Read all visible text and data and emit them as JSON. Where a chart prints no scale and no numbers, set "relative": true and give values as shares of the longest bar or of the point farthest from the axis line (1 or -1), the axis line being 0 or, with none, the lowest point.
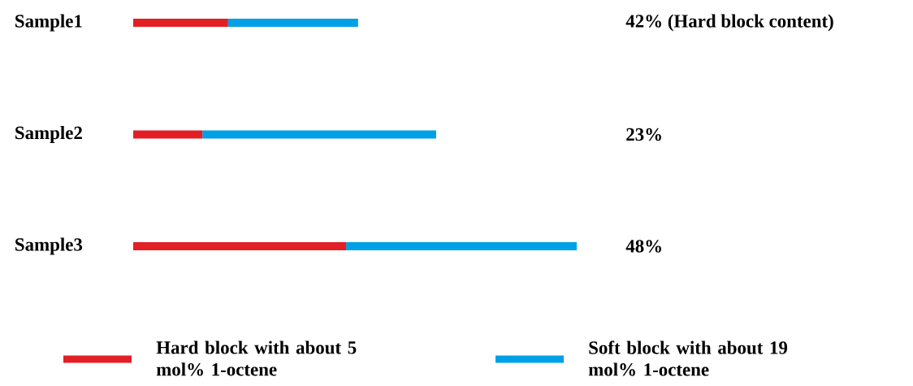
{
  "chart_data": {
    "type": "bar",
    "orientation": "horizontal",
    "stacked": true,
    "relative": true,
    "legend": "bottom",
    "categories": [
      "Sample1",
      "Sample2",
      "Sample3"
    ],
    "series": [
      {
        "name": "Hard block with about 5 mol% 1-octene",
        "color": "#e31f26",
        "values": [
          0.214,
          0.156,
          0.48
        ]
      },
      {
        "name": "Soft block with about 19 mol% 1-octene",
        "color": "#00a0e6",
        "values": [
          0.293,
          0.527,
          0.52
        ]
      }
    ],
    "annotations": [
      "42% (Hard block content)",
      "23%",
      "48%"
    ]
  }
}
